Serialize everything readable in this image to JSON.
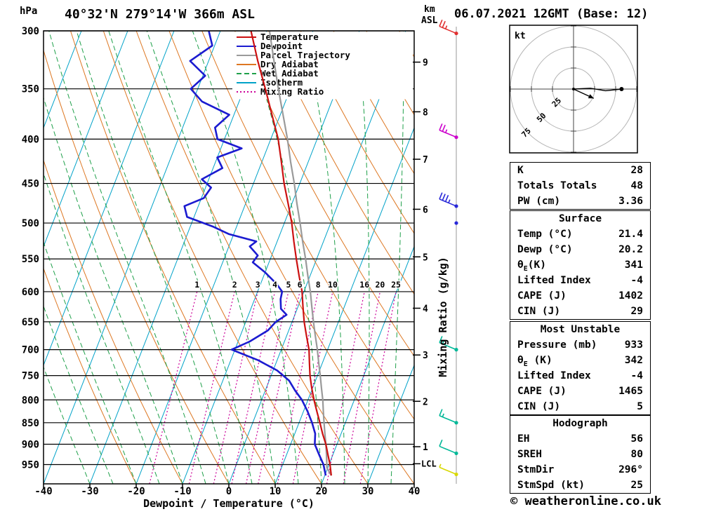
{
  "header": {
    "title": "40°32'N 279°14'W 366m ASL",
    "datetime": "06.07.2021 12GMT (Base: 12)"
  },
  "axes": {
    "pressure_label": "hPa",
    "pressure_ticks": [
      300,
      350,
      400,
      450,
      500,
      550,
      600,
      650,
      700,
      750,
      800,
      850,
      900,
      950
    ],
    "temp_ticks": [
      -40,
      -30,
      -20,
      -10,
      0,
      10,
      20,
      30,
      40
    ],
    "x_label": "Dewpoint / Temperature (°C)",
    "km_label_1": "km",
    "km_label_2": "ASL",
    "km_ticks": [
      {
        "km": "9",
        "p": 326
      },
      {
        "km": "8",
        "p": 372
      },
      {
        "km": "7",
        "p": 422
      },
      {
        "km": "6",
        "p": 482
      },
      {
        "km": "5",
        "p": 547
      },
      {
        "km": "4",
        "p": 627
      },
      {
        "km": "3",
        "p": 710
      },
      {
        "km": "2",
        "p": 803
      },
      {
        "km": "1",
        "p": 906
      }
    ],
    "lcl": {
      "label": "LCL",
      "p": 948
    },
    "mixing_axis_label": "Mixing Ratio (g/kg)",
    "mixing_values": [
      1,
      2,
      3,
      4,
      5,
      6,
      8,
      10,
      16,
      20,
      25
    ]
  },
  "legend": [
    {
      "label": "Temperature",
      "color": "#cc1111",
      "dash": ""
    },
    {
      "label": "Dewpoint",
      "color": "#1b1bd0",
      "dash": ""
    },
    {
      "label": "Parcel Trajectory",
      "color": "#9a9a9a",
      "dash": ""
    },
    {
      "label": "Dry Adiabat",
      "color": "#dd7722",
      "dash": ""
    },
    {
      "label": "Wet Adiabat",
      "color": "#1fa04a",
      "dash": "7,4"
    },
    {
      "label": "Isotherm",
      "color": "#00a2c8",
      "dash": ""
    },
    {
      "label": "Mixing Ratio",
      "color": "#cc0099",
      "dash": "2,3"
    }
  ],
  "colors": {
    "isotherm": "#00a2c8",
    "dry_adiabat": "#dd7722",
    "wet_adiabat": "#1fa04a",
    "mixing_ratio": "#cc0099",
    "pressure_line": "#000000",
    "temperature": "#cc1111",
    "dewpoint": "#1b1bd0",
    "parcel": "#9a9a9a",
    "wind_staff": "#999999",
    "hodo_ring": "#b4b4b4",
    "hodo_axis": "#444444"
  },
  "chart_data": {
    "type": "line",
    "title": "Skew-T log-p sounding",
    "xlabel": "Dewpoint / Temperature (°C)",
    "ylabel": "hPa",
    "x_range": [
      -40,
      40
    ],
    "pressure_range": [
      300,
      1000
    ],
    "grid": true,
    "legend_position": "top-right",
    "series": [
      {
        "name": "Temperature",
        "color": "#cc1111",
        "pressure": [
          978,
          950,
          925,
          900,
          875,
          850,
          825,
          800,
          775,
          750,
          725,
          700,
          675,
          650,
          625,
          600,
          575,
          550,
          525,
          500,
          475,
          450,
          425,
          400,
          375,
          350,
          325,
          300
        ],
        "values": [
          21.4,
          20.2,
          18.9,
          17.6,
          16.0,
          14.5,
          12.9,
          11.3,
          9.8,
          8.4,
          7.2,
          6.0,
          4.3,
          2.6,
          1.1,
          -0.4,
          -2.4,
          -4.4,
          -6.4,
          -8.4,
          -10.8,
          -13.4,
          -15.8,
          -18.4,
          -21.8,
          -25.4,
          -29.4,
          -33.4
        ]
      },
      {
        "name": "Dewpoint",
        "color": "#1b1bd0",
        "pressure": [
          978,
          950,
          925,
          900,
          875,
          850,
          825,
          800,
          780,
          760,
          740,
          720,
          700,
          685,
          665,
          650,
          638,
          628,
          612,
          600,
          588,
          570,
          555,
          545,
          532,
          525,
          515,
          505,
          492,
          478,
          468,
          455,
          445,
          432,
          420,
          410,
          400,
          388,
          375,
          362,
          350,
          338,
          325,
          312,
          300
        ],
        "values": [
          20.2,
          18.8,
          17.0,
          15.2,
          14.4,
          12.8,
          10.9,
          8.7,
          6.4,
          4.3,
          0.9,
          -4.1,
          -10.7,
          -7.5,
          -4.5,
          -3.5,
          -1.8,
          -3.5,
          -4.4,
          -4.7,
          -6.5,
          -10.0,
          -13.5,
          -13.0,
          -15.5,
          -14.5,
          -21.0,
          -25.0,
          -31.5,
          -33.0,
          -29.5,
          -28.8,
          -31.5,
          -28.0,
          -30.0,
          -25.5,
          -31.5,
          -33.0,
          -31.0,
          -38.0,
          -41.5,
          -39.5,
          -44.0,
          -40.5,
          -42.5
        ]
      },
      {
        "name": "Parcel Trajectory",
        "color": "#9a9a9a",
        "pressure": [
          978,
          958,
          925,
          900,
          875,
          850,
          825,
          800,
          775,
          750,
          725,
          700,
          675,
          650,
          625,
          600,
          575,
          550,
          525,
          500,
          475,
          450,
          425,
          400,
          375,
          350,
          325,
          300
        ],
        "values": [
          21.4,
          19.8,
          18.6,
          17.6,
          16.5,
          15.4,
          14.3,
          13.2,
          11.9,
          10.6,
          9.2,
          7.8,
          6.2,
          4.6,
          3.0,
          1.4,
          -0.5,
          -2.4,
          -4.5,
          -6.6,
          -8.9,
          -11.2,
          -13.8,
          -16.4,
          -19.4,
          -22.6,
          -25.9,
          -29.4
        ]
      }
    ],
    "background": {
      "isotherm_step": 10,
      "dry_adiabat_step": 10,
      "wet_adiabat_step": 5,
      "mixing_ratios": [
        1,
        2,
        3,
        4,
        5,
        6,
        8,
        10,
        16,
        20,
        25
      ]
    },
    "hodograph": {
      "unit_label": "kt",
      "rings": [
        25,
        50,
        75
      ],
      "trace_u": [
        0,
        20,
        38,
        57
      ],
      "trace_v": [
        0,
        1,
        -2,
        0
      ],
      "storm_u": 24,
      "storm_v": -11
    },
    "wind_barbs": [
      {
        "p": 302,
        "color": "#e03030",
        "ticks": [
          10,
          10,
          5
        ]
      },
      {
        "p": 398,
        "color": "#cc00cc",
        "ticks": [
          10,
          10,
          5
        ]
      },
      {
        "p": 478,
        "color": "#2828d8",
        "ticks": [
          10,
          10,
          10,
          5
        ]
      },
      {
        "p": 500,
        "color": "#2828d8",
        "ticks": []
      },
      {
        "p": 700,
        "color": "#00b898",
        "ticks": [
          10,
          5
        ]
      },
      {
        "p": 850,
        "color": "#00b898",
        "ticks": [
          10,
          5
        ]
      },
      {
        "p": 922,
        "color": "#00b898",
        "ticks": [
          10
        ]
      },
      {
        "p": 975,
        "color": "#d8d800",
        "ticks": [
          5
        ]
      }
    ]
  },
  "panels": {
    "indices": {
      "rows": [
        {
          "label": "K",
          "value": "28"
        },
        {
          "label": "Totals Totals",
          "value": "48"
        },
        {
          "label": "PW (cm)",
          "value": "3.36"
        }
      ]
    },
    "surface": {
      "title": "Surface",
      "rows": [
        {
          "label": "Temp (°C)",
          "value": "21.4"
        },
        {
          "label": "Dewp (°C)",
          "value": "20.2"
        },
        {
          "label": "θE(K)",
          "value": "341"
        },
        {
          "label": "Lifted Index",
          "value": "-4"
        },
        {
          "label": "CAPE (J)",
          "value": "1402"
        },
        {
          "label": "CIN (J)",
          "value": "29"
        }
      ]
    },
    "most_unstable": {
      "title": "Most Unstable",
      "rows": [
        {
          "label": "Pressure (mb)",
          "value": "933"
        },
        {
          "label": "θE (K)",
          "value": "342"
        },
        {
          "label": "Lifted Index",
          "value": "-4"
        },
        {
          "label": "CAPE (J)",
          "value": "1465"
        },
        {
          "label": "CIN (J)",
          "value": "5"
        }
      ]
    },
    "hodograph_panel": {
      "title": "Hodograph",
      "rows": [
        {
          "label": "EH",
          "value": "56"
        },
        {
          "label": "SREH",
          "value": "80"
        },
        {
          "label": "StmDir",
          "value": "296°"
        },
        {
          "label": "StmSpd (kt)",
          "value": "25"
        }
      ]
    }
  },
  "footer": {
    "credit": "© weatheronline.co.uk"
  }
}
